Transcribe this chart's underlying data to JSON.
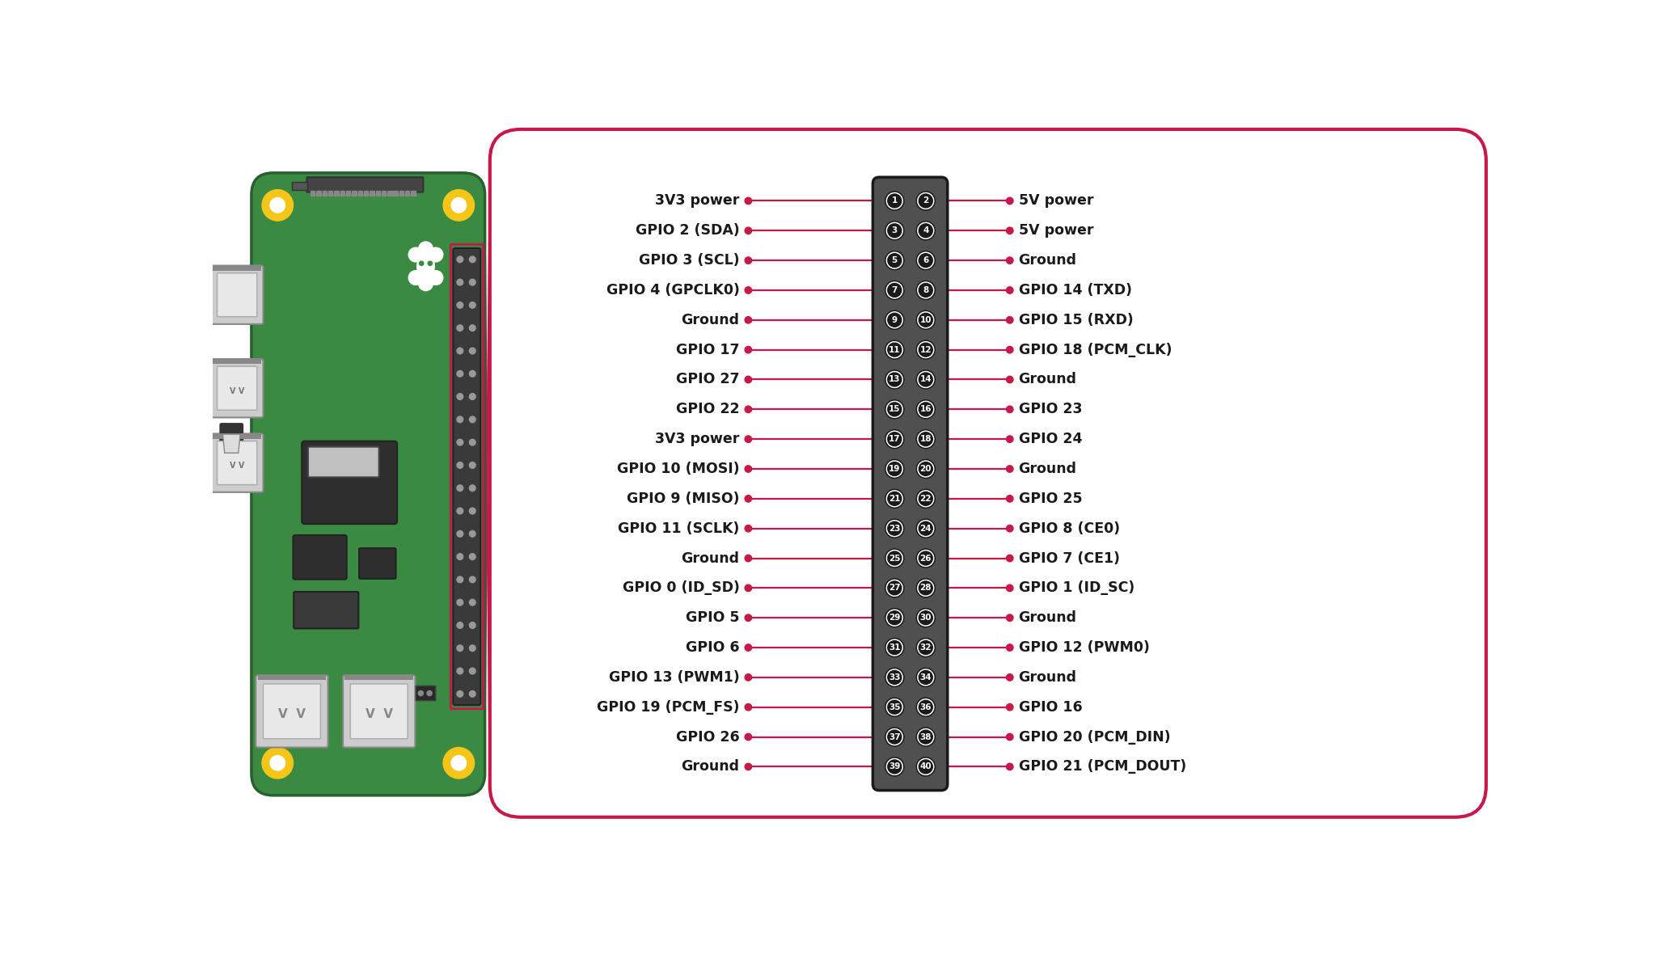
{
  "background_color": "#ffffff",
  "box_color": "#c8184a",
  "board_green": "#3a8a42",
  "board_edge": "#2a6030",
  "connector_fill": "#585858",
  "pin_white": "#ffffff",
  "pin_dark": "#2a2a2a",
  "line_color": "#c8184a",
  "dot_color": "#c8184a",
  "text_color": "#1a1a1a",
  "usb_gray": "#cccccc",
  "usb_edge": "#888888",
  "chip_dark": "#333333",
  "left_pins": [
    "3V3 power",
    "GPIO 2 (SDA)",
    "GPIO 3 (SCL)",
    "GPIO 4 (GPCLK0)",
    "Ground",
    "GPIO 17",
    "GPIO 27",
    "GPIO 22",
    "3V3 power",
    "GPIO 10 (MOSI)",
    "GPIO 9 (MISO)",
    "GPIO 11 (SCLK)",
    "Ground",
    "GPIO 0 (ID_SD)",
    "GPIO 5",
    "GPIO 6",
    "GPIO 13 (PWM1)",
    "GPIO 19 (PCM_FS)",
    "GPIO 26",
    "Ground"
  ],
  "right_pins": [
    "5V power",
    "5V power",
    "Ground",
    "GPIO 14 (TXD)",
    "GPIO 15 (RXD)",
    "GPIO 18 (PCM_CLK)",
    "Ground",
    "GPIO 23",
    "GPIO 24",
    "Ground",
    "GPIO 25",
    "GPIO 8 (CE0)",
    "GPIO 7 (CE1)",
    "GPIO 1 (ID_SC)",
    "Ground",
    "GPIO 12 (PWM0)",
    "Ground",
    "GPIO 16",
    "GPIO 20 (PCM_DIN)",
    "GPIO 21 (PCM_DOUT)"
  ],
  "left_pin_nums": [
    1,
    3,
    5,
    7,
    9,
    11,
    13,
    15,
    17,
    19,
    21,
    23,
    25,
    27,
    29,
    31,
    33,
    35,
    37,
    39
  ],
  "right_pin_nums": [
    2,
    4,
    6,
    8,
    10,
    12,
    14,
    16,
    18,
    20,
    22,
    24,
    26,
    28,
    30,
    32,
    34,
    36,
    38,
    40
  ]
}
